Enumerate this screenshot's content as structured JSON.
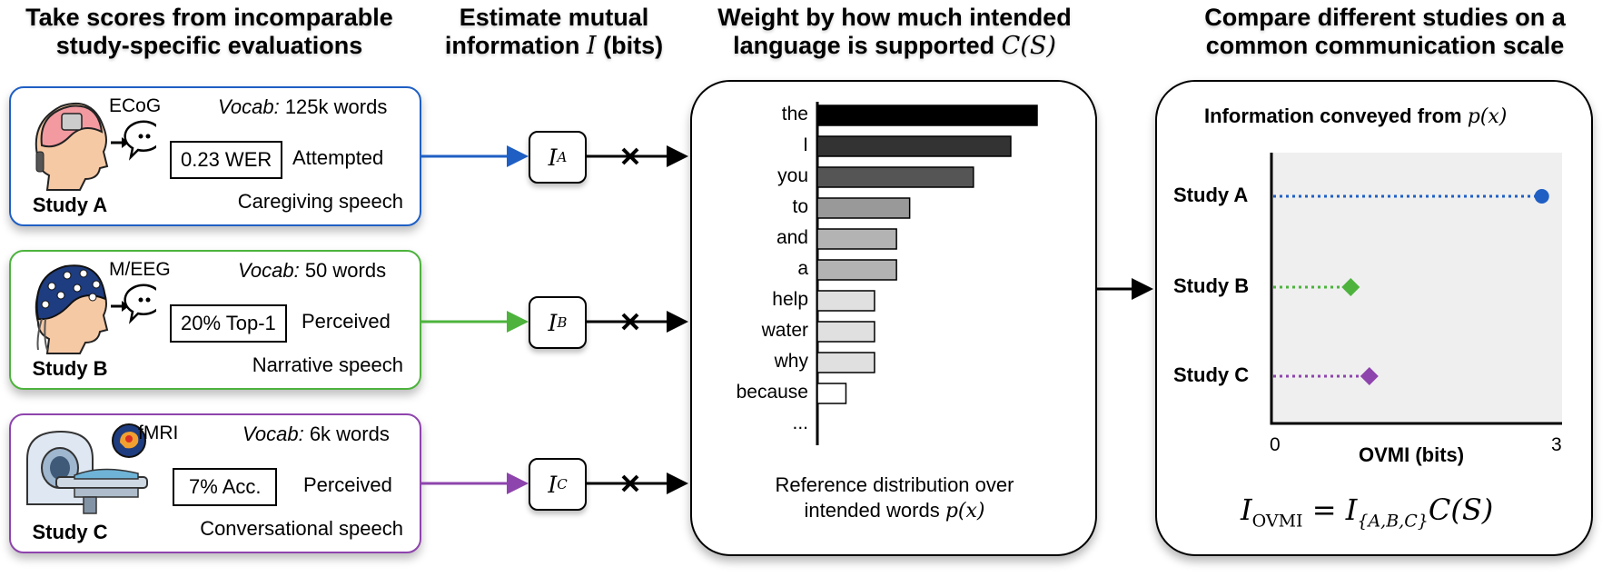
{
  "headers": {
    "col1": [
      "Take scores from incomparable",
      "study-specific evaluations"
    ],
    "col2": [
      "Estimate mutual",
      "information",
      "I",
      "(bits)"
    ],
    "col3": [
      "Weight by how much intended",
      "language is supported",
      "C(S)"
    ],
    "col4": [
      "Compare different studies on a",
      "common communication scale"
    ]
  },
  "studies": [
    {
      "name": "Study A",
      "modality": "ECoG",
      "vocab_label": "Vocab:",
      "vocab": "125k words",
      "score": "0.23 WER",
      "task": "Attempted",
      "speech": "Caregiving speech",
      "color": "#1f5fc4",
      "info": "I",
      "info_sub": "A"
    },
    {
      "name": "Study B",
      "modality": "M/EEG",
      "vocab_label": "Vocab:",
      "vocab": "50 words",
      "score": "20% Top-1",
      "task": "Perceived",
      "speech": "Narrative speech",
      "color": "#4db33d",
      "info": "I",
      "info_sub": "B"
    },
    {
      "name": "Study C",
      "modality": "fMRI",
      "vocab_label": "Vocab:",
      "vocab": "6k words",
      "score": "7% Acc.",
      "task": "Perceived",
      "speech": "Conversational speech",
      "color": "#8e44ad",
      "info": "I",
      "info_sub": "C"
    }
  ],
  "distribution": {
    "words": [
      "the",
      "I",
      "you",
      "to",
      "and",
      "a",
      "help",
      "water",
      "why",
      "because",
      "..."
    ],
    "caption": [
      "Reference distribution over",
      "intended words",
      "p(x)"
    ]
  },
  "chart_data": [
    {
      "type": "bar",
      "orientation": "horizontal",
      "categories": [
        "the",
        "I",
        "you",
        "to",
        "and",
        "a",
        "help",
        "water",
        "why",
        "because"
      ],
      "values": [
        1.0,
        0.88,
        0.71,
        0.42,
        0.36,
        0.36,
        0.26,
        0.26,
        0.26,
        0.13
      ],
      "colors": [
        "#000000",
        "#333333",
        "#555555",
        "#999999",
        "#b3b3b3",
        "#b3b3b3",
        "#e0e0e0",
        "#e0e0e0",
        "#e0e0e0",
        "#ffffff"
      ]
    },
    {
      "type": "scatter",
      "title": "Information conveyed from p(x)",
      "xlabel": "OVMI (bits)",
      "xlim": [
        0,
        3
      ],
      "xticks": [
        "0",
        "3"
      ],
      "categories": [
        "Study A",
        "Study B",
        "Study C"
      ],
      "values": [
        2.9,
        0.85,
        1.05
      ],
      "markers": [
        "circle",
        "diamond",
        "diamond"
      ],
      "colors": [
        "#1f5fc4",
        "#4db33d",
        "#8e44ad"
      ]
    }
  ],
  "ovmi": {
    "title_text": "Information conveyed from",
    "title_math": "p(x)",
    "xlabel": "OVMI (bits)",
    "tick_min": "0",
    "tick_max": "3",
    "formula": {
      "lhs": "I",
      "lhs_sub": "OVMI",
      "rhs": "I",
      "rhs_sub": "{A,B,C}",
      "tail": "C(S)"
    }
  }
}
